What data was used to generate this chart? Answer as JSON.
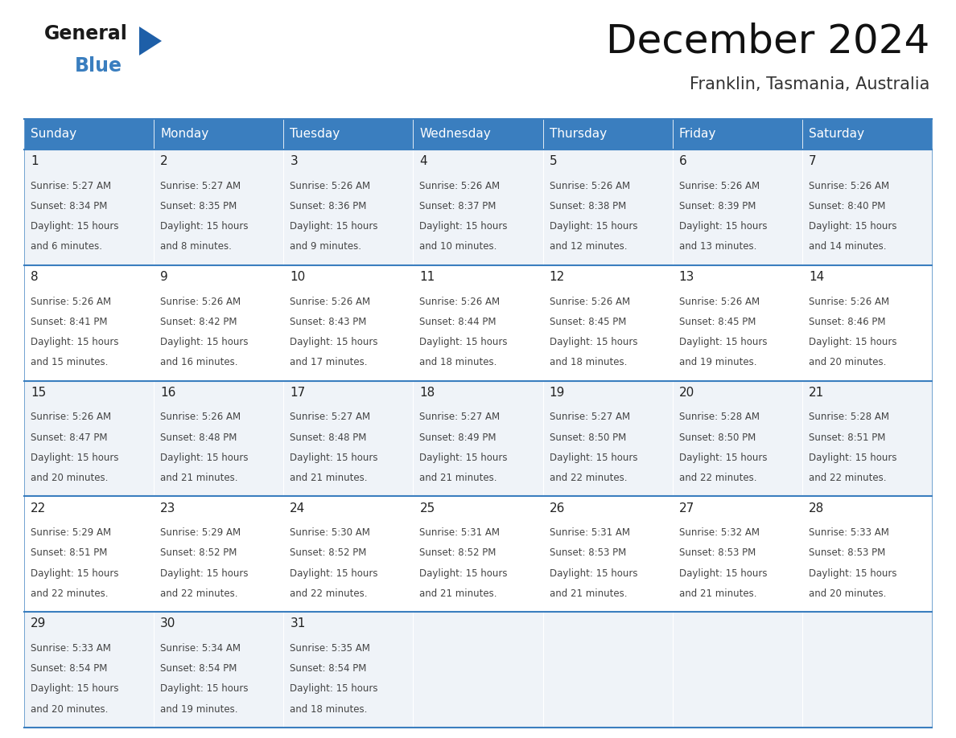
{
  "title": "December 2024",
  "subtitle": "Franklin, Tasmania, Australia",
  "days_of_week": [
    "Sunday",
    "Monday",
    "Tuesday",
    "Wednesday",
    "Thursday",
    "Friday",
    "Saturday"
  ],
  "header_bg_color": "#3a7ebf",
  "header_text_color": "#ffffff",
  "row_colors": [
    "#eff3f8",
    "#ffffff"
  ],
  "cell_border_color": "#3a7ebf",
  "day_number_color": "#222222",
  "cell_text_color": "#444444",
  "calendar_data": [
    {
      "day": 1,
      "sunrise": "5:27 AM",
      "sunset": "8:34 PM",
      "daylight_hours": 15,
      "daylight_minutes": 6
    },
    {
      "day": 2,
      "sunrise": "5:27 AM",
      "sunset": "8:35 PM",
      "daylight_hours": 15,
      "daylight_minutes": 8
    },
    {
      "day": 3,
      "sunrise": "5:26 AM",
      "sunset": "8:36 PM",
      "daylight_hours": 15,
      "daylight_minutes": 9
    },
    {
      "day": 4,
      "sunrise": "5:26 AM",
      "sunset": "8:37 PM",
      "daylight_hours": 15,
      "daylight_minutes": 10
    },
    {
      "day": 5,
      "sunrise": "5:26 AM",
      "sunset": "8:38 PM",
      "daylight_hours": 15,
      "daylight_minutes": 12
    },
    {
      "day": 6,
      "sunrise": "5:26 AM",
      "sunset": "8:39 PM",
      "daylight_hours": 15,
      "daylight_minutes": 13
    },
    {
      "day": 7,
      "sunrise": "5:26 AM",
      "sunset": "8:40 PM",
      "daylight_hours": 15,
      "daylight_minutes": 14
    },
    {
      "day": 8,
      "sunrise": "5:26 AM",
      "sunset": "8:41 PM",
      "daylight_hours": 15,
      "daylight_minutes": 15
    },
    {
      "day": 9,
      "sunrise": "5:26 AM",
      "sunset": "8:42 PM",
      "daylight_hours": 15,
      "daylight_minutes": 16
    },
    {
      "day": 10,
      "sunrise": "5:26 AM",
      "sunset": "8:43 PM",
      "daylight_hours": 15,
      "daylight_minutes": 17
    },
    {
      "day": 11,
      "sunrise": "5:26 AM",
      "sunset": "8:44 PM",
      "daylight_hours": 15,
      "daylight_minutes": 18
    },
    {
      "day": 12,
      "sunrise": "5:26 AM",
      "sunset": "8:45 PM",
      "daylight_hours": 15,
      "daylight_minutes": 18
    },
    {
      "day": 13,
      "sunrise": "5:26 AM",
      "sunset": "8:45 PM",
      "daylight_hours": 15,
      "daylight_minutes": 19
    },
    {
      "day": 14,
      "sunrise": "5:26 AM",
      "sunset": "8:46 PM",
      "daylight_hours": 15,
      "daylight_minutes": 20
    },
    {
      "day": 15,
      "sunrise": "5:26 AM",
      "sunset": "8:47 PM",
      "daylight_hours": 15,
      "daylight_minutes": 20
    },
    {
      "day": 16,
      "sunrise": "5:26 AM",
      "sunset": "8:48 PM",
      "daylight_hours": 15,
      "daylight_minutes": 21
    },
    {
      "day": 17,
      "sunrise": "5:27 AM",
      "sunset": "8:48 PM",
      "daylight_hours": 15,
      "daylight_minutes": 21
    },
    {
      "day": 18,
      "sunrise": "5:27 AM",
      "sunset": "8:49 PM",
      "daylight_hours": 15,
      "daylight_minutes": 21
    },
    {
      "day": 19,
      "sunrise": "5:27 AM",
      "sunset": "8:50 PM",
      "daylight_hours": 15,
      "daylight_minutes": 22
    },
    {
      "day": 20,
      "sunrise": "5:28 AM",
      "sunset": "8:50 PM",
      "daylight_hours": 15,
      "daylight_minutes": 22
    },
    {
      "day": 21,
      "sunrise": "5:28 AM",
      "sunset": "8:51 PM",
      "daylight_hours": 15,
      "daylight_minutes": 22
    },
    {
      "day": 22,
      "sunrise": "5:29 AM",
      "sunset": "8:51 PM",
      "daylight_hours": 15,
      "daylight_minutes": 22
    },
    {
      "day": 23,
      "sunrise": "5:29 AM",
      "sunset": "8:52 PM",
      "daylight_hours": 15,
      "daylight_minutes": 22
    },
    {
      "day": 24,
      "sunrise": "5:30 AM",
      "sunset": "8:52 PM",
      "daylight_hours": 15,
      "daylight_minutes": 22
    },
    {
      "day": 25,
      "sunrise": "5:31 AM",
      "sunset": "8:52 PM",
      "daylight_hours": 15,
      "daylight_minutes": 21
    },
    {
      "day": 26,
      "sunrise": "5:31 AM",
      "sunset": "8:53 PM",
      "daylight_hours": 15,
      "daylight_minutes": 21
    },
    {
      "day": 27,
      "sunrise": "5:32 AM",
      "sunset": "8:53 PM",
      "daylight_hours": 15,
      "daylight_minutes": 21
    },
    {
      "day": 28,
      "sunrise": "5:33 AM",
      "sunset": "8:53 PM",
      "daylight_hours": 15,
      "daylight_minutes": 20
    },
    {
      "day": 29,
      "sunrise": "5:33 AM",
      "sunset": "8:54 PM",
      "daylight_hours": 15,
      "daylight_minutes": 20
    },
    {
      "day": 30,
      "sunrise": "5:34 AM",
      "sunset": "8:54 PM",
      "daylight_hours": 15,
      "daylight_minutes": 19
    },
    {
      "day": 31,
      "sunrise": "5:35 AM",
      "sunset": "8:54 PM",
      "daylight_hours": 15,
      "daylight_minutes": 18
    }
  ],
  "logo_general_color": "#1a1a1a",
  "logo_blue_color": "#3a7ebf",
  "logo_triangle_color": "#1e5fa8",
  "title_fontsize": 36,
  "subtitle_fontsize": 15,
  "header_fontsize": 11,
  "day_num_fontsize": 11,
  "cell_text_fontsize": 8.5
}
